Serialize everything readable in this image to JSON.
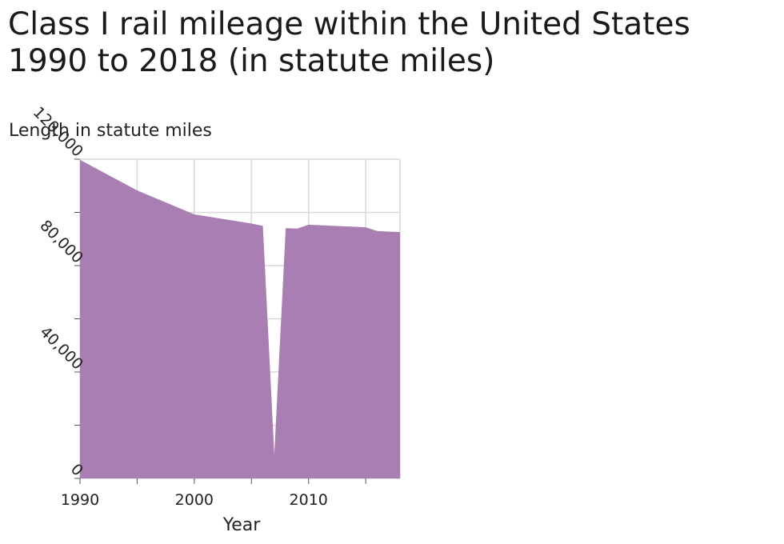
{
  "title": {
    "line1": "Class I rail mileage within the United States",
    "line2": "1990 to 2018 (in statute miles)"
  },
  "chart_data": {
    "type": "area",
    "title": "Class I rail mileage within the United States 1990 to 2018 (in statute miles)",
    "xlabel": "Year",
    "ylabel": "Length in statute miles",
    "xlim": [
      1990,
      2018
    ],
    "ylim": [
      0,
      120000
    ],
    "x_ticks": [
      1990,
      2000,
      2010
    ],
    "x_tick_labels": [
      "1990",
      "2000",
      "2010"
    ],
    "y_ticks": [
      0,
      40000,
      80000,
      120000
    ],
    "y_tick_labels": [
      "0",
      "40,000",
      "80,000",
      "120,000"
    ],
    "grid": true,
    "fill_color": "#a97fb3",
    "series": [
      {
        "x": [
          1990,
          1995,
          2000,
          2005,
          2006,
          2007,
          2008,
          2009,
          2010,
          2015,
          2016,
          2017,
          2018
        ],
        "values": [
          119758,
          108264,
          99250,
          95830,
          94942,
          9000,
          94082,
          93921,
          95387,
          94400,
          93000,
          92800,
          92600
        ]
      }
    ]
  }
}
